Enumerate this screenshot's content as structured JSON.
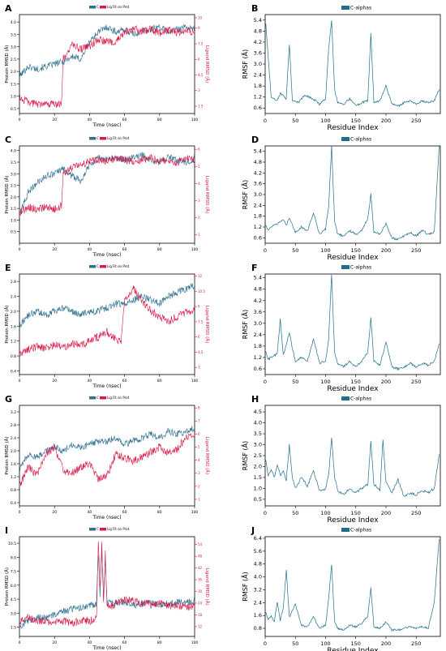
{
  "colors": {
    "protein": "#2e6f8e",
    "ligand": "#d81b4a",
    "calpha": "#1f6f8b"
  },
  "chart_data": [
    {
      "panel": "A",
      "type": "line",
      "xlabel": "Time (nsec)",
      "ylabel": "Protein RMSD (Å)",
      "y2label": "Ligand RMSD (Å)",
      "legend": [
        "C",
        "Lig Fit on Prot"
      ],
      "xlim": [
        0,
        100
      ],
      "xticks": [
        0,
        20,
        40,
        60,
        80,
        100
      ],
      "ylim": [
        0.3,
        4.3
      ],
      "yticks": [
        0.5,
        1.0,
        1.5,
        2.0,
        2.5,
        3.0,
        3.5,
        4.0
      ],
      "y2lim": [
        0.8,
        10.3
      ],
      "y2ticks": [
        1.5,
        3.0,
        4.5,
        6.0,
        7.5,
        9.0,
        10.0
      ],
      "protein": {
        "x": [
          0,
          5,
          10,
          15,
          20,
          25,
          30,
          35,
          40,
          45,
          50,
          55,
          60,
          65,
          70,
          75,
          80,
          85,
          90,
          95,
          100
        ],
        "y": [
          1.8,
          2.2,
          2.1,
          2.2,
          2.3,
          2.4,
          2.6,
          2.5,
          3.2,
          3.6,
          3.8,
          3.6,
          3.7,
          3.5,
          3.6,
          3.7,
          3.8,
          3.6,
          3.7,
          3.8,
          3.7
        ]
      },
      "ligand": {
        "x": [
          0,
          5,
          10,
          15,
          20,
          24,
          25,
          30,
          35,
          40,
          45,
          50,
          55,
          60,
          65,
          70,
          75,
          80,
          85,
          90,
          95,
          100
        ],
        "y": [
          2.3,
          1.9,
          1.7,
          1.6,
          1.7,
          1.8,
          6.0,
          7.4,
          7.0,
          7.2,
          7.9,
          7.7,
          7.6,
          8.6,
          8.9,
          8.7,
          8.9,
          8.5,
          8.8,
          8.6,
          8.8,
          8.6
        ]
      }
    },
    {
      "panel": "B",
      "type": "line",
      "xlabel": "Residue Index",
      "ylabel": "RMSF (Å)",
      "legend": [
        "C-alphas"
      ],
      "xlim": [
        0,
        290
      ],
      "xticks": [
        0,
        50,
        100,
        150,
        200,
        250
      ],
      "ylim": [
        0.3,
        5.7
      ],
      "yticks": [
        0.6,
        1.2,
        1.8,
        2.4,
        3.0,
        3.6,
        4.2,
        4.8,
        5.4
      ],
      "x": [
        1,
        10,
        20,
        25,
        35,
        40,
        45,
        55,
        65,
        80,
        90,
        100,
        105,
        110,
        115,
        120,
        130,
        140,
        150,
        160,
        170,
        175,
        180,
        190,
        200,
        210,
        220,
        230,
        240,
        250,
        260,
        270,
        280,
        288
      ],
      "y": [
        5.2,
        1.2,
        1.0,
        1.4,
        1.1,
        4.1,
        1.0,
        0.9,
        1.3,
        1.1,
        0.8,
        1.1,
        3.8,
        5.4,
        1.6,
        0.9,
        0.8,
        1.1,
        0.7,
        0.9,
        1.0,
        4.7,
        0.9,
        1.0,
        1.8,
        0.8,
        0.7,
        0.9,
        1.0,
        0.8,
        1.0,
        0.9,
        1.0,
        1.6
      ]
    },
    {
      "panel": "C",
      "type": "line",
      "xlabel": "Time (nsec)",
      "ylabel": "Protein RMSD (Å)",
      "y2label": "Ligand RMSD (Å)",
      "legend": [
        "C",
        "Lig Fit on Prot"
      ],
      "xlim": [
        0,
        100
      ],
      "xticks": [
        0,
        20,
        40,
        60,
        80,
        100
      ],
      "ylim": [
        0.0,
        4.2
      ],
      "yticks": [
        0.5,
        1.0,
        1.5,
        2.0,
        2.5,
        3.0,
        3.5,
        4.0
      ],
      "y2lim": [
        0.5,
        6.2
      ],
      "y2ticks": [
        1,
        2,
        3,
        4,
        5,
        6
      ],
      "protein": {
        "x": [
          0,
          5,
          10,
          15,
          20,
          25,
          30,
          35,
          40,
          45,
          50,
          55,
          60,
          65,
          70,
          75,
          80,
          85,
          90,
          95,
          100
        ],
        "y": [
          1.2,
          2.2,
          2.6,
          2.9,
          3.0,
          3.2,
          2.9,
          2.7,
          3.4,
          3.7,
          3.6,
          3.7,
          3.6,
          3.7,
          3.8,
          3.6,
          3.5,
          3.7,
          3.6,
          3.5,
          3.6
        ]
      },
      "ligand": {
        "x": [
          0,
          5,
          10,
          15,
          20,
          24,
          25,
          30,
          35,
          40,
          45,
          50,
          55,
          60,
          65,
          70,
          75,
          80,
          85,
          90,
          95,
          100
        ],
        "y": [
          2.3,
          2.6,
          2.5,
          2.6,
          2.5,
          2.7,
          4.6,
          4.9,
          5.1,
          5.3,
          5.4,
          5.3,
          5.5,
          5.4,
          5.3,
          5.4,
          5.5,
          5.3,
          5.4,
          5.2,
          5.5,
          5.4
        ]
      }
    },
    {
      "panel": "D",
      "type": "line",
      "xlabel": "Residue Index",
      "ylabel": "RMSF (Å)",
      "legend": [
        "C-alphas"
      ],
      "xlim": [
        0,
        290
      ],
      "xticks": [
        0,
        50,
        100,
        150,
        200,
        250
      ],
      "ylim": [
        0.3,
        5.7
      ],
      "yticks": [
        0.6,
        1.2,
        1.8,
        2.4,
        3.0,
        3.6,
        4.2,
        4.8,
        5.4
      ],
      "x": [
        1,
        5,
        10,
        20,
        30,
        35,
        40,
        50,
        60,
        70,
        80,
        90,
        100,
        105,
        110,
        115,
        120,
        130,
        140,
        150,
        160,
        170,
        175,
        180,
        190,
        200,
        210,
        220,
        230,
        240,
        250,
        260,
        270,
        280,
        288
      ],
      "y": [
        1.3,
        1.0,
        1.2,
        1.4,
        1.6,
        1.3,
        1.7,
        0.9,
        1.2,
        1.0,
        2.0,
        0.8,
        1.1,
        2.3,
        5.7,
        1.5,
        0.8,
        0.7,
        1.0,
        0.8,
        1.0,
        1.7,
        3.0,
        0.9,
        0.8,
        1.4,
        0.6,
        0.5,
        0.7,
        0.9,
        0.7,
        1.0,
        0.8,
        0.9,
        5.7
      ]
    },
    {
      "panel": "E",
      "type": "line",
      "xlabel": "Time (nsec)",
      "ylabel": "Protein RMSD (Å)",
      "y2label": "Ligand RMSD (Å)",
      "legend": [
        "C",
        "Lig Fit on Prot"
      ],
      "xlim": [
        0,
        100
      ],
      "xticks": [
        0,
        20,
        40,
        60,
        80,
        100
      ],
      "ylim": [
        0.3,
        3.0
      ],
      "yticks": [
        0.4,
        0.8,
        1.2,
        1.6,
        2.0,
        2.4,
        2.8
      ],
      "y2lim": [
        2.3,
        12.2
      ],
      "y2ticks": [
        3.0,
        4.5,
        6.0,
        7.5,
        9.0,
        10.5,
        12.0
      ],
      "protein": {
        "x": [
          0,
          5,
          10,
          15,
          20,
          25,
          30,
          35,
          40,
          45,
          50,
          55,
          60,
          65,
          70,
          75,
          80,
          85,
          90,
          95,
          100
        ],
        "y": [
          1.6,
          1.9,
          2.0,
          1.9,
          2.0,
          2.1,
          2.0,
          1.9,
          2.0,
          2.0,
          2.1,
          2.2,
          2.2,
          2.3,
          2.4,
          2.3,
          2.2,
          2.4,
          2.5,
          2.6,
          2.7
        ]
      },
      "ligand": {
        "x": [
          0,
          5,
          10,
          15,
          20,
          25,
          30,
          35,
          40,
          45,
          50,
          55,
          58,
          60,
          65,
          70,
          75,
          80,
          85,
          90,
          95,
          100
        ],
        "y": [
          4.3,
          4.8,
          5.1,
          4.9,
          5.2,
          5.0,
          5.4,
          5.2,
          5.6,
          6.0,
          6.5,
          5.8,
          5.4,
          9.8,
          10.8,
          9.5,
          8.6,
          8.0,
          7.5,
          8.0,
          8.4,
          8.6
        ]
      }
    },
    {
      "panel": "F",
      "type": "line",
      "xlabel": "Residue Index",
      "ylabel": "RMSF (Å)",
      "legend": [
        "C-alphas"
      ],
      "xlim": [
        0,
        290
      ],
      "xticks": [
        0,
        50,
        100,
        150,
        200,
        250
      ],
      "ylim": [
        0.3,
        5.6
      ],
      "yticks": [
        0.6,
        1.2,
        1.8,
        2.4,
        3.0,
        3.6,
        4.2,
        4.8,
        5.4
      ],
      "x": [
        1,
        5,
        10,
        20,
        25,
        30,
        40,
        45,
        50,
        60,
        70,
        80,
        90,
        100,
        105,
        110,
        115,
        120,
        130,
        140,
        150,
        160,
        170,
        175,
        180,
        190,
        200,
        210,
        220,
        230,
        240,
        250,
        260,
        270,
        280,
        288
      ],
      "y": [
        1.5,
        1.1,
        1.2,
        1.4,
        3.2,
        1.3,
        2.5,
        1.7,
        1.0,
        1.2,
        1.0,
        2.2,
        0.9,
        1.0,
        2.1,
        5.6,
        1.4,
        0.9,
        0.7,
        1.0,
        0.7,
        1.0,
        1.5,
        3.3,
        1.0,
        0.8,
        2.0,
        0.7,
        0.6,
        0.7,
        0.9,
        0.7,
        0.9,
        0.8,
        1.0,
        1.9
      ]
    },
    {
      "panel": "G",
      "type": "line",
      "xlabel": "Time (nsec)",
      "ylabel": "Protein RMSD (Å)",
      "y2label": "Ligand RMSD (Å)",
      "legend": [
        "C",
        "Lig Fit on Prot"
      ],
      "xlim": [
        0,
        100
      ],
      "xticks": [
        0,
        20,
        40,
        60,
        80,
        100
      ],
      "ylim": [
        0.3,
        3.4
      ],
      "yticks": [
        0.4,
        0.8,
        1.2,
        1.6,
        2.0,
        2.4,
        2.8,
        3.2
      ],
      "y2lim": [
        0.5,
        8.2
      ],
      "y2ticks": [
        1,
        2,
        3,
        4,
        5,
        6,
        7,
        8
      ],
      "protein": {
        "x": [
          0,
          5,
          10,
          15,
          20,
          25,
          30,
          35,
          40,
          45,
          50,
          55,
          60,
          65,
          70,
          75,
          80,
          85,
          90,
          95,
          100
        ],
        "y": [
          1.4,
          1.9,
          1.8,
          2.0,
          2.1,
          2.0,
          2.2,
          2.1,
          2.2,
          2.3,
          2.3,
          2.4,
          2.2,
          2.3,
          2.4,
          2.5,
          2.4,
          2.6,
          2.5,
          2.6,
          2.7
        ]
      },
      "ligand": {
        "x": [
          0,
          5,
          10,
          15,
          20,
          25,
          30,
          35,
          40,
          45,
          50,
          55,
          60,
          65,
          70,
          75,
          80,
          85,
          90,
          95,
          100
        ],
        "y": [
          2.0,
          3.5,
          2.8,
          4.5,
          5.0,
          3.2,
          3.0,
          3.4,
          3.8,
          2.5,
          2.8,
          4.5,
          4.2,
          3.9,
          4.3,
          4.6,
          5.0,
          4.5,
          4.8,
          5.8,
          6.0
        ]
      }
    },
    {
      "panel": "H",
      "type": "line",
      "xlabel": "Residue Index",
      "ylabel": "RMSF (Å)",
      "legend": [
        "C-alphas"
      ],
      "xlim": [
        0,
        290
      ],
      "xticks": [
        0,
        50,
        100,
        150,
        200,
        250
      ],
      "ylim": [
        0.2,
        4.8
      ],
      "yticks": [
        0.5,
        1.0,
        1.5,
        2.0,
        2.5,
        3.0,
        3.5,
        4.0,
        4.5
      ],
      "x": [
        1,
        5,
        10,
        15,
        20,
        25,
        30,
        35,
        40,
        45,
        50,
        60,
        70,
        80,
        90,
        100,
        105,
        110,
        115,
        120,
        130,
        140,
        150,
        160,
        170,
        175,
        180,
        190,
        195,
        200,
        210,
        220,
        230,
        240,
        250,
        260,
        270,
        280,
        288
      ],
      "y": [
        2.3,
        1.6,
        1.9,
        1.5,
        2.1,
        1.6,
        1.8,
        1.4,
        3.0,
        1.5,
        1.0,
        1.5,
        1.1,
        1.8,
        0.9,
        1.0,
        1.6,
        3.3,
        1.5,
        0.9,
        0.7,
        1.0,
        0.8,
        1.0,
        1.2,
        3.2,
        1.2,
        0.9,
        3.2,
        1.3,
        0.8,
        1.4,
        0.6,
        0.8,
        0.7,
        0.9,
        0.8,
        1.0,
        2.5
      ]
    },
    {
      "panel": "I",
      "type": "line",
      "xlabel": "Time (nsec)",
      "ylabel": "Protein RMSD (Å)",
      "y2label": "Ligand RMSD (Å)",
      "legend": [
        "C",
        "Lig Fit on Prot"
      ],
      "xlim": [
        0,
        100
      ],
      "xticks": [
        0,
        20,
        40,
        60,
        80,
        100
      ],
      "ylim": [
        0.5,
        11.2
      ],
      "yticks": [
        1.5,
        3.0,
        4.5,
        6.0,
        7.5,
        9.0,
        10.5
      ],
      "y2lim": [
        7.0,
        58.0
      ],
      "y2ticks": [
        12,
        18,
        24,
        30,
        36,
        42,
        48,
        54
      ],
      "protein": {
        "x": [
          0,
          5,
          10,
          15,
          20,
          25,
          30,
          35,
          40,
          44,
          45,
          46,
          47,
          48,
          49,
          50,
          52,
          55,
          60,
          65,
          70,
          75,
          80,
          85,
          90,
          95,
          100
        ],
        "y": [
          1.6,
          2.2,
          2.6,
          2.5,
          2.8,
          3.2,
          3.4,
          3.6,
          3.8,
          4.0,
          9.5,
          5.0,
          10.2,
          4.5,
          9.0,
          4.2,
          4.0,
          4.1,
          4.2,
          3.9,
          4.0,
          4.1,
          3.9,
          4.0,
          4.2,
          4.1,
          4.3
        ]
      },
      "ligand": {
        "x": [
          0,
          5,
          10,
          15,
          20,
          25,
          30,
          35,
          40,
          44,
          45,
          46,
          47,
          48,
          49,
          50,
          52,
          55,
          60,
          65,
          70,
          75,
          80,
          85,
          90,
          95,
          100
        ],
        "y": [
          14,
          17,
          15,
          15,
          14,
          15,
          14,
          15,
          15,
          16,
          56,
          30,
          54,
          25,
          50,
          23,
          22,
          24,
          26,
          25,
          24,
          23,
          24,
          23,
          23,
          22,
          23
        ]
      }
    },
    {
      "panel": "J",
      "type": "line",
      "xlabel": "Residue Index",
      "ylabel": "RMSF (Å)",
      "legend": [
        "C-alphas"
      ],
      "xlim": [
        0,
        290
      ],
      "xticks": [
        0,
        50,
        100,
        150,
        200,
        250
      ],
      "ylim": [
        0.3,
        6.5
      ],
      "yticks": [
        0.8,
        1.6,
        2.4,
        3.2,
        4.0,
        4.8,
        5.6,
        6.4
      ],
      "x": [
        1,
        5,
        10,
        15,
        20,
        25,
        30,
        35,
        40,
        50,
        60,
        70,
        80,
        90,
        100,
        105,
        110,
        115,
        120,
        130,
        140,
        150,
        160,
        170,
        175,
        180,
        190,
        200,
        210,
        220,
        230,
        240,
        250,
        260,
        270,
        280,
        288
      ],
      "y": [
        1.8,
        1.3,
        1.6,
        1.2,
        2.4,
        1.3,
        2.1,
        4.4,
        1.5,
        2.3,
        1.0,
        0.9,
        1.5,
        0.8,
        1.0,
        2.6,
        4.8,
        1.2,
        0.8,
        0.7,
        1.0,
        0.9,
        1.1,
        1.6,
        3.3,
        0.9,
        0.8,
        1.2,
        0.7,
        0.7,
        0.8,
        0.9,
        0.8,
        0.9,
        0.8,
        2.4,
        6.4
      ]
    }
  ]
}
